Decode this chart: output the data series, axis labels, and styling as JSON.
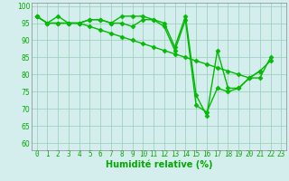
{
  "lines": [
    {
      "x": [
        0,
        1,
        2,
        3,
        4,
        5,
        6,
        7,
        8,
        9,
        10,
        11,
        12,
        13,
        14,
        15,
        16,
        17,
        18,
        19,
        20,
        21,
        22
      ],
      "y": [
        97,
        95,
        97,
        95,
        95,
        96,
        96,
        95,
        97,
        97,
        97,
        96,
        95,
        88,
        97,
        74,
        68,
        87,
        76,
        76,
        79,
        81,
        84
      ]
    },
    {
      "x": [
        0,
        1,
        2,
        3,
        4,
        5,
        6,
        7,
        8,
        9,
        10,
        11,
        12,
        13,
        14,
        15,
        16,
        17,
        18,
        19,
        20,
        21,
        22
      ],
      "y": [
        97,
        95,
        95,
        95,
        95,
        94,
        93,
        92,
        91,
        90,
        89,
        88,
        87,
        86,
        85,
        84,
        83,
        82,
        81,
        80,
        79,
        79,
        85
      ]
    },
    {
      "x": [
        0,
        1,
        2,
        3,
        4,
        5,
        6,
        7,
        8,
        9,
        10,
        11,
        12,
        13,
        14,
        15,
        16,
        17,
        18,
        19,
        20,
        21
      ],
      "y": [
        97,
        95,
        95,
        95,
        95,
        96,
        96,
        95,
        95,
        94,
        96,
        96,
        94,
        87,
        96,
        71,
        69,
        76,
        75,
        76,
        79,
        81
      ]
    }
  ],
  "line_color": "#00bb00",
  "marker": "D",
  "markersize": 2.5,
  "linewidth": 1.0,
  "bg_color": "#d4eeed",
  "grid_color": "#99ccbb",
  "xlabel": "Humidité relative (%)",
  "xlabel_color": "#00aa00",
  "xlabel_fontsize": 7,
  "tick_color": "#00aa00",
  "tick_fontsize": 5.5,
  "ylim": [
    58,
    101
  ],
  "xlim": [
    -0.5,
    23.5
  ],
  "yticks": [
    60,
    65,
    70,
    75,
    80,
    85,
    90,
    95,
    100
  ],
  "xticks": [
    0,
    1,
    2,
    3,
    4,
    5,
    6,
    7,
    8,
    9,
    10,
    11,
    12,
    13,
    14,
    15,
    16,
    17,
    18,
    19,
    20,
    21,
    22,
    23
  ]
}
